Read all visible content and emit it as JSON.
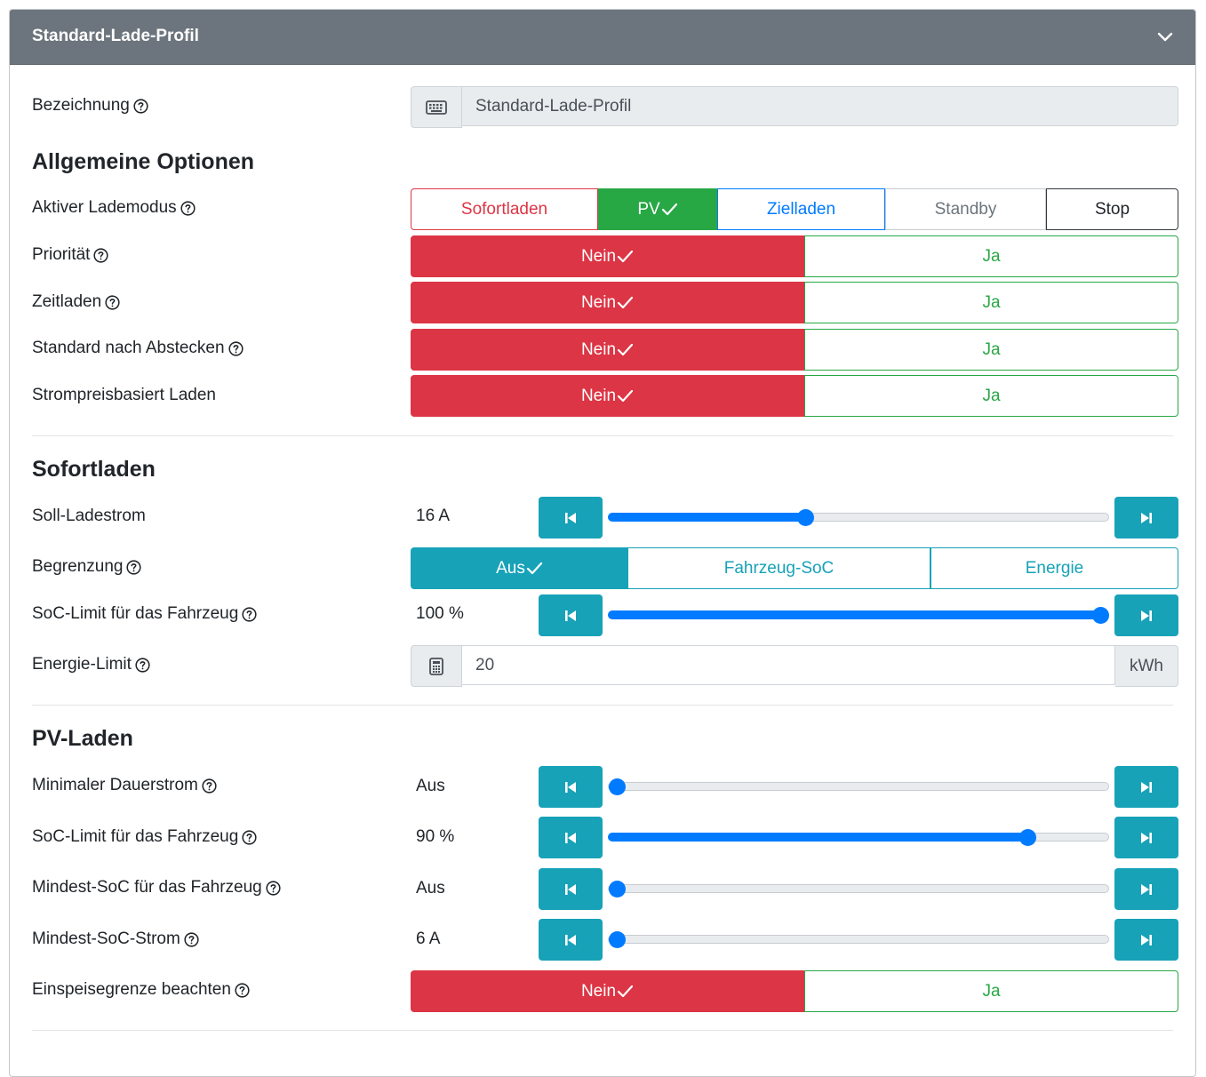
{
  "card": {
    "title": "Standard-Lade-Profil"
  },
  "bezeichnung": {
    "label": "Bezeichnung",
    "value": "Standard-Lade-Profil",
    "icon": "keyboard-icon"
  },
  "allgemein": {
    "title": "Allgemeine Optionen",
    "lademodus": {
      "label": "Aktiver Lademodus",
      "options": [
        "Sofortladen",
        "PV",
        "Zielladen",
        "Standby",
        "Stop"
      ],
      "selected": "PV"
    },
    "prioritaet": {
      "label": "Priorität",
      "no": "Nein",
      "yes": "Ja",
      "selected": "Nein"
    },
    "zeitladen": {
      "label": "Zeitladen",
      "no": "Nein",
      "yes": "Ja",
      "selected": "Nein"
    },
    "standard_abstecken": {
      "label": "Standard nach Abstecken",
      "no": "Nein",
      "yes": "Ja",
      "selected": "Nein"
    },
    "strompreis": {
      "label": "Strompreisbasiert Laden",
      "no": "Nein",
      "yes": "Ja",
      "selected": "Nein"
    }
  },
  "sofortladen": {
    "title": "Sofortladen",
    "soll_ladestrom": {
      "label": "Soll-Ladestrom",
      "value": "16 A",
      "level": 0.39
    },
    "begrenzung": {
      "label": "Begrenzung",
      "options": [
        "Aus",
        "Fahrzeug-SoC",
        "Energie"
      ],
      "selected": "Aus"
    },
    "soc_limit": {
      "label": "SoC-Limit für das Fahrzeug",
      "value": "100 %",
      "level": 1.0
    },
    "energie_limit": {
      "label": "Energie-Limit",
      "value": "20",
      "unit": "kWh",
      "icon": "calculator-icon"
    }
  },
  "pv": {
    "title": "PV-Laden",
    "min_dauerstrom": {
      "label": "Minimaler Dauerstrom",
      "value": "Aus",
      "level": 0.0
    },
    "soc_limit": {
      "label": "SoC-Limit für das Fahrzeug",
      "value": "90 %",
      "level": 0.85
    },
    "min_soc": {
      "label": "Mindest-SoC für das Fahrzeug",
      "value": "Aus",
      "level": 0.0
    },
    "min_soc_strom": {
      "label": "Mindest-SoC-Strom",
      "value": "6 A",
      "level": 0.0
    },
    "einspeisegrenze": {
      "label": "Einspeisegrenze beachten",
      "no": "Nein",
      "yes": "Ja",
      "selected": "Nein"
    }
  },
  "colors": {
    "header": "#6c757d",
    "success": "#28a745",
    "danger": "#dc3545",
    "info": "#17a2b8",
    "primary": "#007bff"
  }
}
